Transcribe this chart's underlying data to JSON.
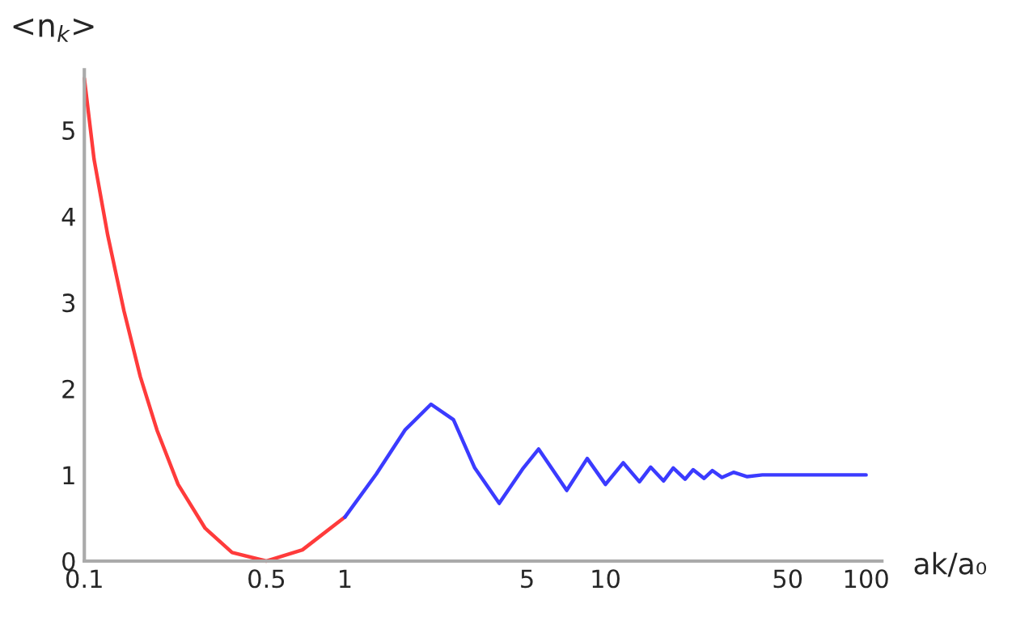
{
  "chart_data": {
    "type": "line",
    "xlabel": "ak/a₀",
    "ylabel": "<n$_{k}$>",
    "log": "x",
    "grid": false,
    "legend": false,
    "marker": "none",
    "line_style": "solid",
    "xlim": [
      0.1,
      115
    ],
    "xticks": [
      0.1,
      0.5,
      1,
      5,
      10,
      50,
      100
    ],
    "ylim": [
      0,
      5.7
    ],
    "yticks": [
      0,
      1,
      2,
      3,
      4,
      5
    ],
    "series": [
      {
        "color": "#ff3b3b",
        "x": [
          0.1,
          0.109,
          0.123,
          0.142,
          0.164,
          0.19,
          0.229,
          0.291,
          0.369,
          0.5,
          0.687,
          1.0
        ],
        "values": [
          5.6,
          4.66,
          3.78,
          2.9,
          2.14,
          1.52,
          0.89,
          0.38,
          0.1,
          0.0,
          0.13,
          0.51
        ]
      },
      {
        "color": "#3b3bff",
        "x": [
          1.0,
          1.32,
          1.7,
          2.14,
          2.61,
          3.15,
          3.91,
          4.84,
          5.54,
          7.1,
          8.51,
          10,
          11.7,
          13.5,
          14.9,
          16.7,
          18.2,
          20.2,
          21.7,
          23.9,
          25.7,
          28,
          31,
          35,
          40,
          60,
          100
        ],
        "values": [
          0.51,
          1.01,
          1.52,
          1.82,
          1.64,
          1.08,
          0.67,
          1.08,
          1.3,
          0.82,
          1.19,
          0.89,
          1.14,
          0.92,
          1.09,
          0.93,
          1.08,
          0.95,
          1.06,
          0.96,
          1.05,
          0.97,
          1.03,
          0.98,
          1.0,
          1.0,
          1.0
        ]
      }
    ]
  }
}
